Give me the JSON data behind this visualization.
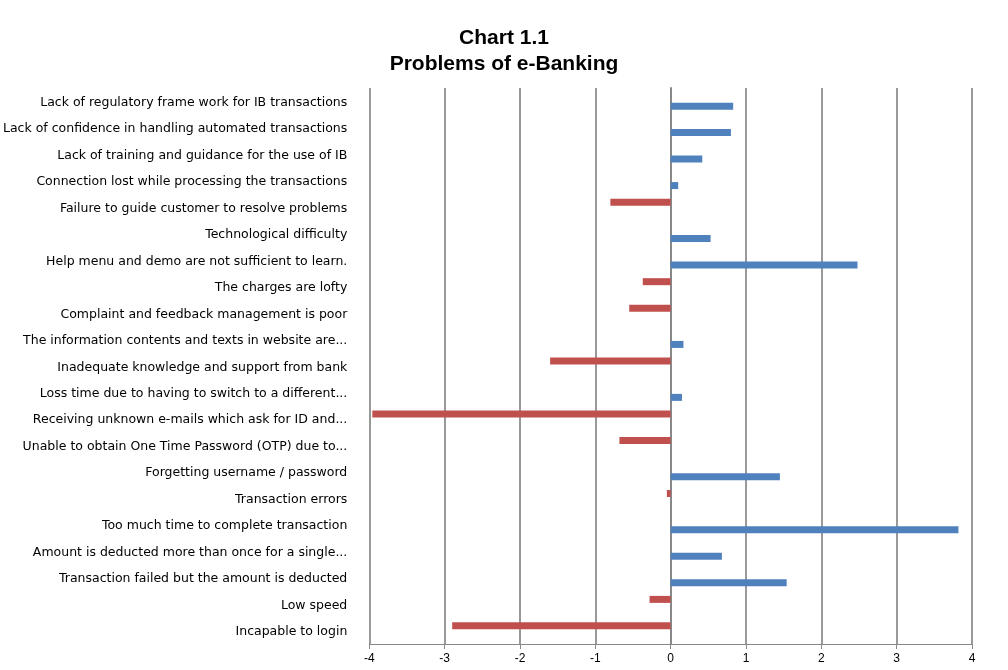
{
  "chart_data": {
    "type": "bar",
    "orientation": "horizontal",
    "title": "Chart 1.1\nProblems of e-Banking",
    "categories": [
      "Lack of regulatory frame work for IB transactions",
      "Lack of confidence in handling automated transactions",
      "Lack of training and guidance for the use of IB",
      "Connection lost while processing the transactions",
      "Failure to guide customer to resolve problems",
      "Technological difficulty",
      "Help menu and demo are not sufficient to learn.",
      "The charges are lofty",
      "Complaint and feedback management is poor",
      "The information contents and texts in website are...",
      "Inadequate knowledge and support from bank",
      "Loss time due to having to switch to a different...",
      "Receiving unknown e-mails which ask for ID and...",
      "Unable to obtain One Time Password (OTP) due to...",
      "Forgetting username / password",
      "Transaction errors",
      "Too much time to complete transaction",
      "Amount is deducted more than once for a single...",
      "Transaction failed but the amount is deducted",
      "Low speed",
      "Incapable to login"
    ],
    "series": [
      {
        "color": "#c0504d",
        "values": [
          0,
          0,
          0,
          0,
          -0.8,
          0,
          0,
          -0.37,
          -0.55,
          0,
          -1.6,
          0,
          -3.96,
          -0.68,
          0,
          -0.05,
          0,
          0,
          0,
          -0.28,
          -2.9
        ]
      },
      {
        "color": "#4f81bd",
        "values": [
          0.83,
          0.8,
          0.42,
          0.1,
          0,
          0.53,
          2.48,
          0,
          0,
          0.17,
          0,
          0.15,
          0,
          0,
          1.45,
          0,
          3.82,
          0.68,
          1.54,
          0,
          0
        ]
      }
    ],
    "xlim": [
      -4,
      4
    ],
    "xticks": [
      -4,
      -3,
      -2,
      -1,
      0,
      1,
      2,
      3,
      4
    ],
    "grid": "x"
  }
}
